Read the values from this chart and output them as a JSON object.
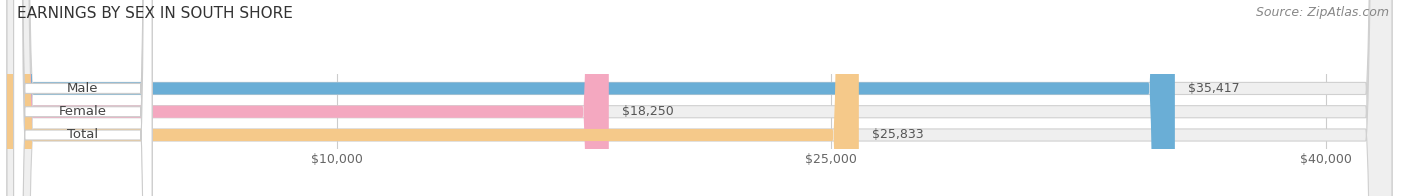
{
  "title": "EARNINGS BY SEX IN SOUTH SHORE",
  "source": "Source: ZipAtlas.com",
  "categories": [
    "Male",
    "Female",
    "Total"
  ],
  "values": [
    35417,
    18250,
    25833
  ],
  "bar_colors": [
    "#6aaed6",
    "#f4a8c0",
    "#f5c98a"
  ],
  "bar_bg_color": "#efefef",
  "value_labels": [
    "$35,417",
    "$18,250",
    "$25,833"
  ],
  "xlim_min": 0,
  "xlim_max": 42000,
  "xticks": [
    10000,
    25000,
    40000
  ],
  "xtick_labels": [
    "$10,000",
    "$25,000",
    "$40,000"
  ],
  "title_fontsize": 11,
  "source_fontsize": 9,
  "bar_height": 0.52,
  "background_color": "#ffffff",
  "grid_color": "#cccccc",
  "bar_edge_color": "#d0d0d0"
}
